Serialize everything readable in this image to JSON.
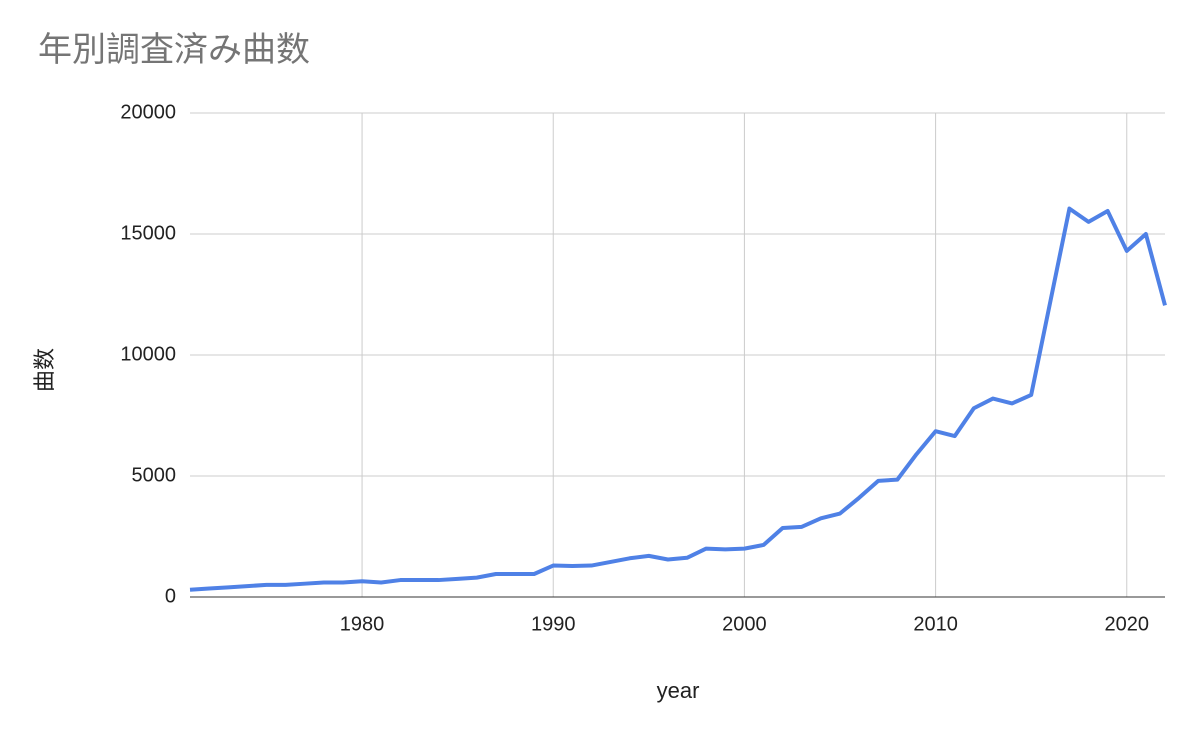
{
  "chart_data": {
    "type": "line",
    "title": "年別調査済み曲数",
    "x_label": "year",
    "y_label": "曲数",
    "x": [
      1971,
      1972,
      1973,
      1974,
      1975,
      1976,
      1977,
      1978,
      1979,
      1980,
      1981,
      1982,
      1983,
      1984,
      1985,
      1986,
      1987,
      1988,
      1989,
      1990,
      1991,
      1992,
      1993,
      1994,
      1995,
      1996,
      1997,
      1998,
      1999,
      2000,
      2001,
      2002,
      2003,
      2004,
      2005,
      2006,
      2007,
      2008,
      2009,
      2010,
      2011,
      2012,
      2013,
      2014,
      2015,
      2016,
      2017,
      2018,
      2019,
      2020,
      2021,
      2022
    ],
    "series": [
      {
        "name": "曲数",
        "color": "#4f81e6",
        "values": [
          300,
          350,
          400,
          450,
          500,
          500,
          550,
          600,
          600,
          650,
          600,
          700,
          700,
          700,
          750,
          800,
          950,
          950,
          950,
          1300,
          1280,
          1300,
          1450,
          1600,
          1700,
          1550,
          1620,
          2000,
          1970,
          2000,
          2150,
          2850,
          2900,
          3250,
          3450,
          4100,
          4800,
          4850,
          5900,
          6850,
          6650,
          7800,
          8200,
          8000,
          8350,
          12200,
          16050,
          15500,
          15950,
          14300,
          15000,
          12050
        ]
      }
    ],
    "xlim": [
      1971,
      2022
    ],
    "xticks": [
      1980,
      1990,
      2000,
      2010,
      2020
    ],
    "ylim": [
      0,
      20000
    ],
    "yticks": [
      0,
      5000,
      10000,
      15000,
      20000
    ],
    "grid": true
  }
}
